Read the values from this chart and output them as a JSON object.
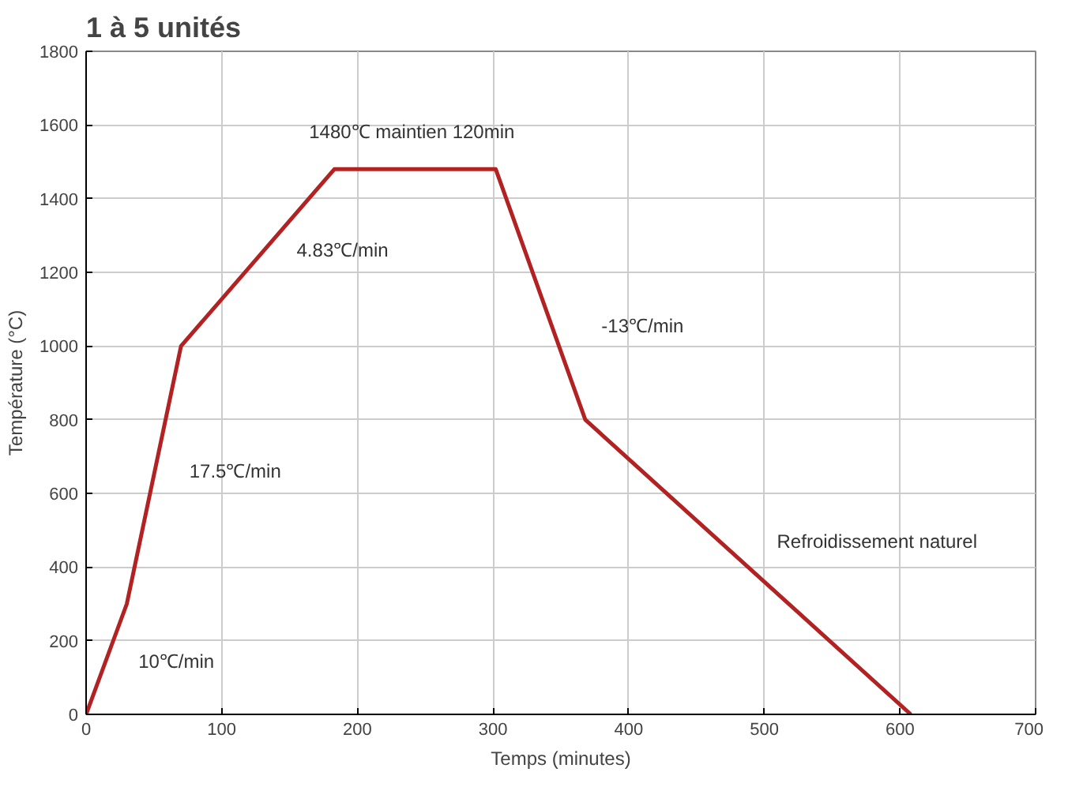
{
  "chart_data": {
    "type": "line",
    "title": "1 à 5 unités",
    "xlabel": "Temps (minutes)",
    "ylabel": "Température (°C)",
    "x": [
      0,
      30,
      70,
      183,
      302,
      368,
      608
    ],
    "series": [
      {
        "color": "#b22222",
        "values": [
          0,
          300,
          1000,
          1480,
          1480,
          800,
          0
        ]
      }
    ],
    "xlim": [
      0,
      700
    ],
    "ylim": [
      0,
      1800
    ],
    "xticks": [
      0,
      100,
      200,
      300,
      400,
      500,
      600,
      700
    ],
    "yticks": [
      0,
      200,
      400,
      600,
      800,
      1000,
      1200,
      1400,
      1600,
      1800
    ],
    "grid": true,
    "marker": "none",
    "line_style": "solid",
    "annotations": [
      "10℃/min",
      "17.5℃/min",
      "4.83℃/min",
      "1480℃ maintien 120min",
      "-13℃/min",
      "Refroidissement naturel"
    ]
  }
}
